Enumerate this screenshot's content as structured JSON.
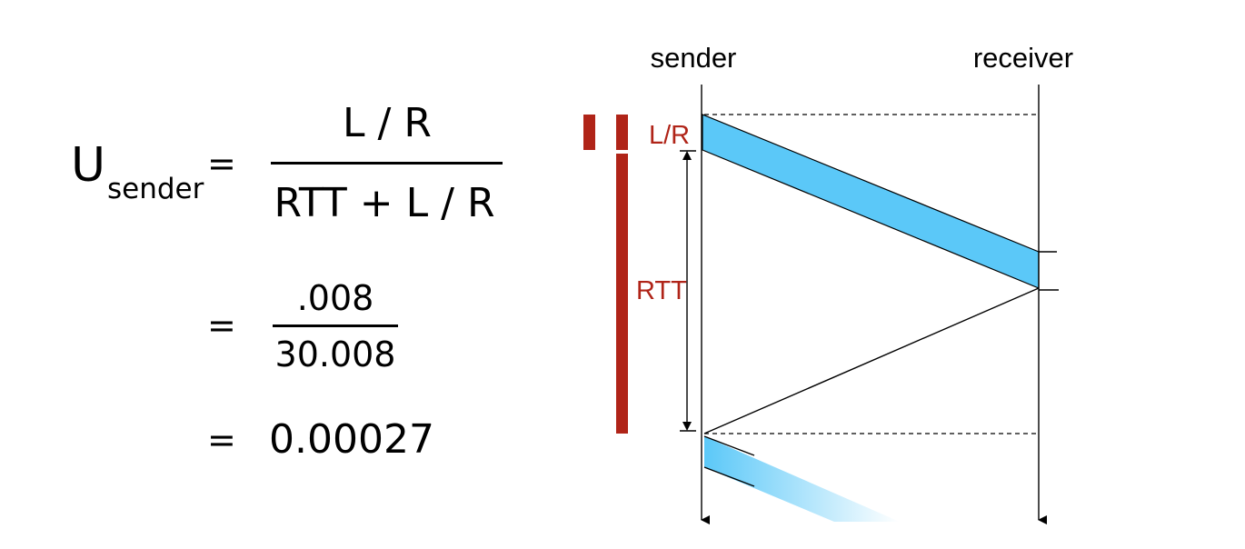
{
  "formula": {
    "u_label": "U",
    "u_subscript": "sender",
    "eq_sign": "=",
    "numerator": "L / R",
    "denominator": "RTT + L / R",
    "step2_eq": "=",
    "step2_numerator": ".008",
    "step2_denominator": "30.008",
    "step3_eq": "=",
    "step3_value": "0.00027"
  },
  "diagram": {
    "sender_label": "sender",
    "receiver_label": "receiver",
    "lr_label": "L/R",
    "rtt_label": "RTT",
    "colors": {
      "packet": "#5bc8f8",
      "accent": "#b02418",
      "line": "#000000"
    }
  }
}
